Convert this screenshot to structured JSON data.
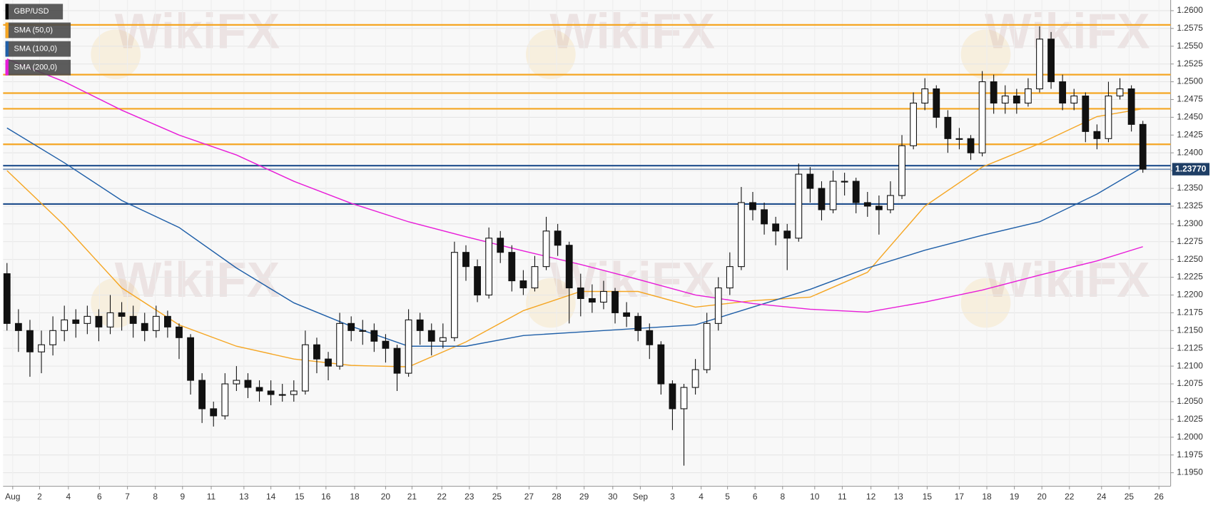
{
  "chart_data": {
    "type": "candlestick",
    "watermark": "WikiFX",
    "xlim": [
      -0.34,
      101.42
    ],
    "ylim": [
      1.1931,
      1.2615
    ],
    "grid": true,
    "candles": {
      "name": "GBP/USD",
      "color": "#111111",
      "up_color": "#ffffff",
      "open": [
        1.223,
        1.216,
        1.215,
        1.212,
        1.213,
        1.215,
        1.2165,
        1.216,
        1.217,
        1.2155,
        1.2175,
        1.217,
        1.216,
        1.215,
        1.217,
        1.2155,
        1.214,
        1.208,
        1.204,
        1.203,
        1.2075,
        1.208,
        1.207,
        1.2065,
        1.206,
        1.206,
        1.2065,
        1.213,
        1.211,
        1.21,
        1.216,
        1.215,
        1.215,
        1.2135,
        1.2125,
        1.209,
        1.2165,
        1.215,
        1.2135,
        1.214,
        1.226,
        1.224,
        1.22,
        1.228,
        1.226,
        1.222,
        1.221,
        1.224,
        1.229,
        1.227,
        1.221,
        1.2195,
        1.219,
        1.2205,
        1.2175,
        1.217,
        1.215,
        1.213,
        1.2075,
        1.204,
        1.207,
        1.2095,
        1.216,
        1.221,
        1.224,
        1.233,
        1.232,
        1.23,
        1.229,
        1.228,
        1.237,
        1.235,
        1.232,
        1.236,
        1.236,
        1.233,
        1.2325,
        1.232,
        1.234,
        1.241,
        1.247,
        1.249,
        1.245,
        1.242,
        1.242,
        1.24,
        1.25,
        1.247,
        1.248,
        1.247,
        1.249,
        1.256,
        1.25,
        1.247,
        1.248,
        1.243,
        1.242,
        1.248,
        1.249,
        1.244
      ],
      "high": [
        1.2245,
        1.218,
        1.2165,
        1.215,
        1.217,
        1.2185,
        1.218,
        1.2185,
        1.218,
        1.22,
        1.219,
        1.2185,
        1.2175,
        1.2185,
        1.2178,
        1.216,
        1.2145,
        1.209,
        1.205,
        1.209,
        1.21,
        1.209,
        1.208,
        1.208,
        1.2075,
        1.208,
        1.215,
        1.214,
        1.212,
        1.2175,
        1.217,
        1.2165,
        1.216,
        1.2145,
        1.213,
        1.218,
        1.2175,
        1.216,
        1.216,
        1.2275,
        1.227,
        1.225,
        1.2295,
        1.229,
        1.227,
        1.2235,
        1.2255,
        1.231,
        1.23,
        1.2275,
        1.223,
        1.2215,
        1.222,
        1.221,
        1.219,
        1.2175,
        1.216,
        1.2135,
        1.208,
        1.2075,
        1.211,
        1.2175,
        1.2225,
        1.226,
        1.2352,
        1.2345,
        1.233,
        1.231,
        1.23,
        1.2385,
        1.238,
        1.236,
        1.2375,
        1.2372,
        1.2365,
        1.2345,
        1.234,
        1.236,
        1.2425,
        1.2485,
        1.2505,
        1.2495,
        1.246,
        1.2435,
        1.2425,
        1.2515,
        1.251,
        1.2495,
        1.249,
        1.2505,
        1.2578,
        1.257,
        1.251,
        1.249,
        1.2485,
        1.244,
        1.25,
        1.2505,
        1.2495,
        1.2445
      ],
      "low": [
        1.215,
        1.212,
        1.2085,
        1.209,
        1.2115,
        1.2135,
        1.214,
        1.2145,
        1.2135,
        1.2145,
        1.215,
        1.214,
        1.2135,
        1.214,
        1.214,
        1.211,
        1.206,
        1.202,
        1.2015,
        1.2025,
        1.2065,
        1.2055,
        1.205,
        1.2045,
        1.205,
        1.205,
        1.206,
        1.209,
        1.208,
        1.2095,
        1.2135,
        1.213,
        1.212,
        1.2105,
        1.2065,
        1.2085,
        1.213,
        1.2115,
        1.2125,
        1.2135,
        1.222,
        1.219,
        1.2195,
        1.2245,
        1.2205,
        1.22,
        1.2205,
        1.2235,
        1.2255,
        1.216,
        1.217,
        1.2175,
        1.218,
        1.216,
        1.2155,
        1.2135,
        1.211,
        1.206,
        1.201,
        1.196,
        1.206,
        1.209,
        1.215,
        1.22,
        1.2235,
        1.2305,
        1.2285,
        1.227,
        1.2235,
        1.2275,
        1.233,
        1.2305,
        1.2315,
        1.234,
        1.2315,
        1.231,
        1.2285,
        1.2315,
        1.2335,
        1.2405,
        1.246,
        1.2435,
        1.24,
        1.2405,
        1.239,
        1.2395,
        1.2455,
        1.2455,
        1.2455,
        1.2465,
        1.2485,
        1.249,
        1.246,
        1.246,
        1.2415,
        1.2405,
        1.2415,
        1.2475,
        1.243,
        1.2372
      ],
      "close": [
        1.216,
        1.215,
        1.212,
        1.213,
        1.215,
        1.2165,
        1.216,
        1.217,
        1.2155,
        1.2175,
        1.217,
        1.216,
        1.215,
        1.217,
        1.2155,
        1.214,
        1.208,
        1.204,
        1.203,
        1.2075,
        1.208,
        1.207,
        1.2065,
        1.206,
        1.206,
        1.2065,
        1.213,
        1.211,
        1.21,
        1.216,
        1.215,
        1.215,
        1.2135,
        1.2125,
        1.209,
        1.2165,
        1.215,
        1.2135,
        1.214,
        1.226,
        1.224,
        1.22,
        1.228,
        1.226,
        1.222,
        1.221,
        1.224,
        1.229,
        1.227,
        1.221,
        1.2195,
        1.219,
        1.2205,
        1.2175,
        1.217,
        1.215,
        1.213,
        1.2075,
        1.204,
        1.207,
        1.2095,
        1.216,
        1.221,
        1.224,
        1.233,
        1.232,
        1.23,
        1.229,
        1.228,
        1.237,
        1.235,
        1.232,
        1.236,
        1.236,
        1.233,
        1.2325,
        1.232,
        1.234,
        1.241,
        1.247,
        1.249,
        1.245,
        1.242,
        1.242,
        1.24,
        1.25,
        1.247,
        1.248,
        1.247,
        1.249,
        1.256,
        1.25,
        1.247,
        1.248,
        1.243,
        1.242,
        1.248,
        1.249,
        1.244,
        1.2377
      ]
    },
    "series": [
      {
        "name": "SMA (50,0)",
        "color": "#f5a623",
        "x": [
          0,
          5,
          10,
          15,
          20,
          25,
          30,
          35,
          40,
          45,
          50,
          55,
          60,
          65,
          70,
          75,
          80,
          85,
          90,
          95,
          99
        ],
        "values": [
          1.2375,
          1.2298,
          1.221,
          1.2158,
          1.2128,
          1.211,
          1.2101,
          1.2099,
          1.2134,
          1.2178,
          1.2205,
          1.2205,
          1.2183,
          1.2192,
          1.2197,
          1.2232,
          1.2325,
          1.238,
          1.2413,
          1.2451,
          1.2462
        ]
      },
      {
        "name": "SMA (100,0)",
        "color": "#1f5fa8",
        "x": [
          0,
          5,
          10,
          15,
          20,
          25,
          30,
          35,
          40,
          45,
          50,
          55,
          60,
          65,
          70,
          75,
          80,
          85,
          90,
          95,
          99
        ],
        "values": [
          1.2435,
          1.2386,
          1.2333,
          1.2295,
          1.2238,
          1.2189,
          1.2156,
          1.2128,
          1.2128,
          1.2143,
          1.2148,
          1.2153,
          1.2158,
          1.2183,
          1.2208,
          1.2238,
          1.2263,
          1.2284,
          1.2303,
          1.2342,
          1.238
        ]
      },
      {
        "name": "SMA (200,0)",
        "color": "#e81cd8",
        "x": [
          0,
          5,
          10,
          15,
          20,
          25,
          30,
          35,
          40,
          45,
          50,
          55,
          60,
          65,
          70,
          75,
          80,
          85,
          90,
          95,
          99
        ],
        "values": [
          1.2532,
          1.25,
          1.246,
          1.2425,
          1.2397,
          1.236,
          1.2329,
          1.2303,
          1.2282,
          1.2262,
          1.2243,
          1.2222,
          1.22,
          1.2188,
          1.218,
          1.2176,
          1.219,
          1.2207,
          1.2228,
          1.2248,
          1.2268
        ]
      }
    ],
    "hlines": [
      {
        "value": 1.258,
        "color": "#f5a623"
      },
      {
        "value": 1.251,
        "color": "#f5a623"
      },
      {
        "value": 1.2484,
        "color": "#f5a623"
      },
      {
        "value": 1.2462,
        "color": "#f5a623"
      },
      {
        "value": 1.2412,
        "color": "#f5a623"
      },
      {
        "value": 1.2382,
        "color": "#1f4e8c"
      },
      {
        "value": 1.2328,
        "color": "#1f4e8c"
      }
    ],
    "last_price": {
      "value": 1.2377,
      "label": "1.23770"
    },
    "yticks": [
      {
        "value": 1.195,
        "label": "1.1950"
      },
      {
        "value": 1.1975,
        "label": "1.1975"
      },
      {
        "value": 1.2,
        "label": "1.2000"
      },
      {
        "value": 1.2025,
        "label": "1.2025"
      },
      {
        "value": 1.205,
        "label": "1.2050"
      },
      {
        "value": 1.2075,
        "label": "1.2075"
      },
      {
        "value": 1.21,
        "label": "1.2100"
      },
      {
        "value": 1.2125,
        "label": "1.2125"
      },
      {
        "value": 1.215,
        "label": "1.2150"
      },
      {
        "value": 1.2175,
        "label": "1.2175"
      },
      {
        "value": 1.22,
        "label": "1.2200"
      },
      {
        "value": 1.2225,
        "label": "1.2225"
      },
      {
        "value": 1.225,
        "label": "1.2250"
      },
      {
        "value": 1.2275,
        "label": "1.2275"
      },
      {
        "value": 1.23,
        "label": "1.2300"
      },
      {
        "value": 1.2325,
        "label": "1.2325"
      },
      {
        "value": 1.235,
        "label": "1.2350"
      },
      {
        "value": 1.2375,
        "label": "1.2375"
      },
      {
        "value": 1.24,
        "label": "1.2400"
      },
      {
        "value": 1.2425,
        "label": "1.2425"
      },
      {
        "value": 1.245,
        "label": "1.2450"
      },
      {
        "value": 1.2475,
        "label": "1.2475"
      },
      {
        "value": 1.25,
        "label": "1.2500"
      },
      {
        "value": 1.2525,
        "label": "1.2525"
      },
      {
        "value": 1.255,
        "label": "1.2550"
      },
      {
        "value": 1.2575,
        "label": "1.2575"
      },
      {
        "value": 1.26,
        "label": "1.2600"
      }
    ],
    "xticks": [
      {
        "value": 0.5,
        "label": "Aug"
      },
      {
        "value": 2.84,
        "label": "2"
      },
      {
        "value": 5.35,
        "label": "4"
      },
      {
        "value": 8.06,
        "label": "6"
      },
      {
        "value": 10.5,
        "label": "7"
      },
      {
        "value": 12.93,
        "label": "8"
      },
      {
        "value": 15.3,
        "label": "9"
      },
      {
        "value": 17.8,
        "label": "11"
      },
      {
        "value": 20.65,
        "label": "13"
      },
      {
        "value": 23.0,
        "label": "14"
      },
      {
        "value": 25.5,
        "label": "15"
      },
      {
        "value": 27.8,
        "label": "16"
      },
      {
        "value": 30.3,
        "label": "18"
      },
      {
        "value": 33.0,
        "label": "20"
      },
      {
        "value": 35.3,
        "label": "21"
      },
      {
        "value": 37.9,
        "label": "22"
      },
      {
        "value": 40.3,
        "label": "23"
      },
      {
        "value": 42.7,
        "label": "25"
      },
      {
        "value": 45.5,
        "label": "27"
      },
      {
        "value": 47.9,
        "label": "28"
      },
      {
        "value": 50.3,
        "label": "29"
      },
      {
        "value": 52.8,
        "label": "30"
      },
      {
        "value": 55.2,
        "label": "Sep"
      },
      {
        "value": 58.0,
        "label": "3"
      },
      {
        "value": 60.5,
        "label": "4"
      },
      {
        "value": 62.8,
        "label": "5"
      },
      {
        "value": 65.2,
        "label": "6"
      },
      {
        "value": 67.6,
        "label": "8"
      },
      {
        "value": 70.4,
        "label": "10"
      },
      {
        "value": 72.8,
        "label": "11"
      },
      {
        "value": 75.3,
        "label": "12"
      },
      {
        "value": 77.7,
        "label": "13"
      },
      {
        "value": 80.2,
        "label": "15"
      },
      {
        "value": 83.0,
        "label": "17"
      },
      {
        "value": 85.4,
        "label": "18"
      },
      {
        "value": 87.8,
        "label": "19"
      },
      {
        "value": 90.2,
        "label": "20"
      },
      {
        "value": 92.6,
        "label": "22"
      },
      {
        "value": 95.4,
        "label": "24"
      },
      {
        "value": 97.8,
        "label": "25"
      },
      {
        "value": 100.4,
        "label": "26"
      }
    ]
  }
}
